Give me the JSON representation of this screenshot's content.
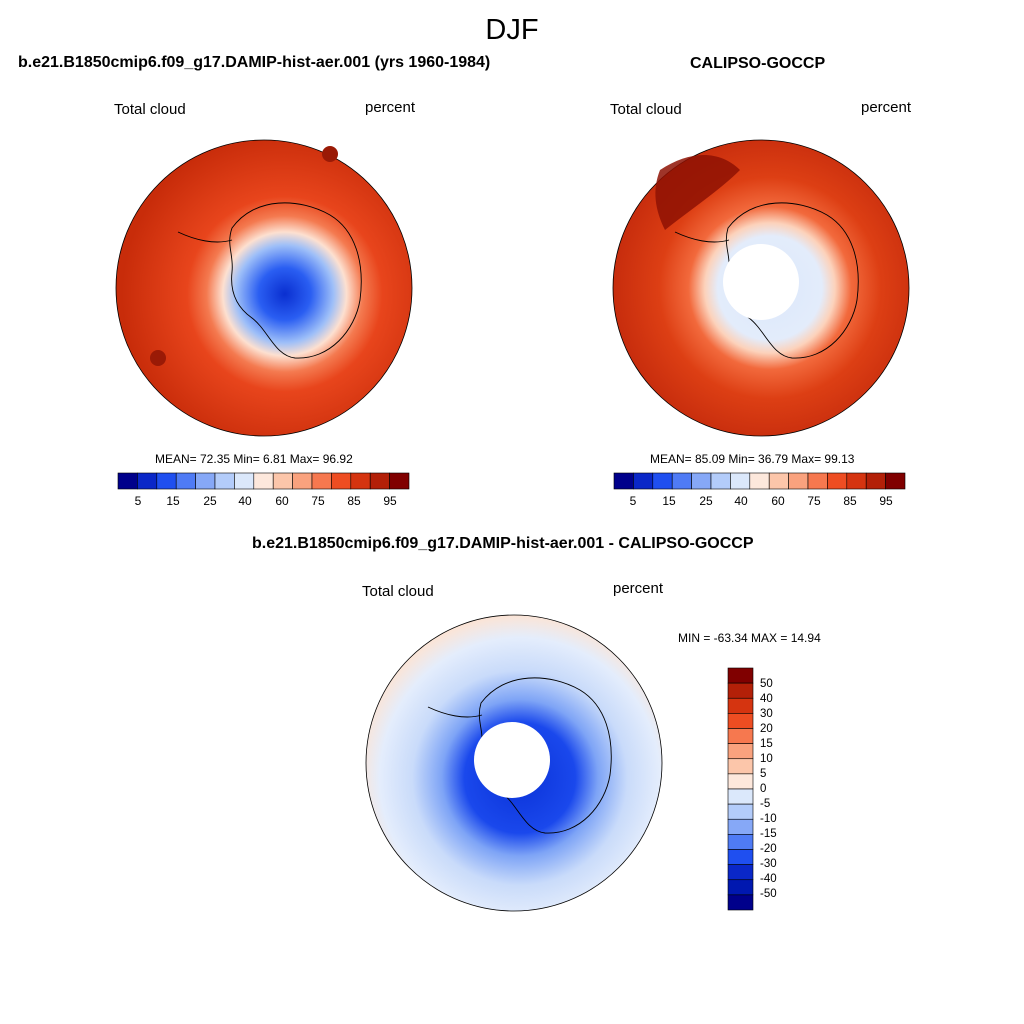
{
  "figure": {
    "season": "DJF"
  },
  "panels": [
    {
      "title": "b.e21.B1850cmip6.f09_g17.DAMIP-hist-aer.001 (yrs 1960-1984)",
      "left_label": "Total cloud",
      "right_label": "percent",
      "stats": "MEAN=  72.35  Min=   6.81  Max=  96.92",
      "colorbar_ticks": [
        "5",
        "15",
        "25",
        "40",
        "60",
        "75",
        "85",
        "95"
      ],
      "colors": [
        "#00008b",
        "#0a27c8",
        "#1f4ff0",
        "#4f7bf5",
        "#86a8f7",
        "#b3ccfa",
        "#dbe8fb",
        "#fde8dc",
        "#fcc6aa",
        "#f9a27e",
        "#f6784f",
        "#ee4d22",
        "#d53410",
        "#b32008",
        "#800000"
      ]
    },
    {
      "title": "CALIPSO-GOCCP",
      "left_label": "Total cloud",
      "right_label": "percent",
      "stats": "MEAN=  85.09  Min=  36.79  Max=  99.13",
      "colorbar_ticks": [
        "5",
        "15",
        "25",
        "40",
        "60",
        "75",
        "85",
        "95"
      ]
    },
    {
      "title": "b.e21.B1850cmip6.f09_g17.DAMIP-hist-aer.001 - CALIPSO-GOCCP",
      "left_label": "Total cloud",
      "right_label": "percent",
      "stats": "MIN = -63.34 MAX =  14.94",
      "colorbar_ticks": [
        "50",
        "40",
        "30",
        "20",
        "15",
        "10",
        "5",
        "0",
        "-5",
        "-10",
        "-15",
        "-20",
        "-30",
        "-40",
        "-50"
      ],
      "colors": [
        "#800000",
        "#b32008",
        "#d53410",
        "#ee4d22",
        "#f6784f",
        "#f9a27e",
        "#fcc6aa",
        "#fde8dc",
        "#dbe8fb",
        "#b3ccfa",
        "#86a8f7",
        "#4f7bf5",
        "#1f4ff0",
        "#0a27c8",
        "#0018b0",
        "#00008b"
      ]
    }
  ]
}
